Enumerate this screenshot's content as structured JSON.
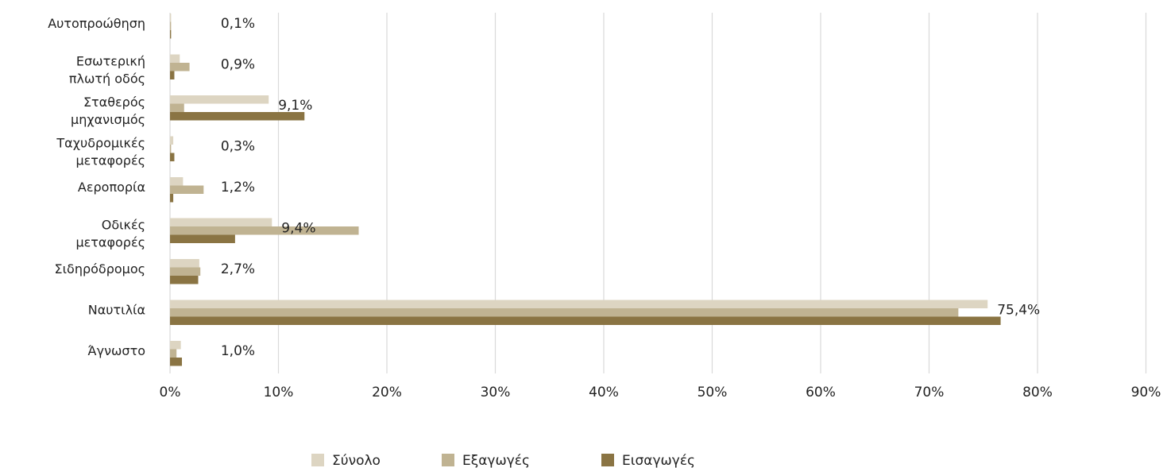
{
  "chart_data": {
    "type": "bar",
    "orientation": "horizontal",
    "categories": [
      "Αυτοπροώθηση",
      "Εσωτερική πλωτή οδός",
      "Σταθερός μηχανισμός",
      "Ταχυδρομικές μεταφορές",
      "Αεροπορία",
      "Οδικές μεταφορές",
      "Σιδηρόδρομος",
      "Ναυτιλία",
      "Άγνωστο"
    ],
    "category_lines": [
      [
        "Αυτοπροώθηση"
      ],
      [
        "Εσωτερική",
        "πλωτή οδός"
      ],
      [
        "Σταθερός",
        "μηχανισμός"
      ],
      [
        "Ταχυδρομικές",
        "μεταφορές"
      ],
      [
        "Αεροπορία"
      ],
      [
        "Οδικές",
        "μεταφορές"
      ],
      [
        "Σιδηρόδρομος"
      ],
      [
        "Ναυτιλία"
      ],
      [
        "Άγνωστο"
      ]
    ],
    "series": [
      {
        "name": "Σύνολο",
        "color": "#ddd5c2",
        "values": [
          0.1,
          0.9,
          9.1,
          0.3,
          1.2,
          9.4,
          2.7,
          75.4,
          1.0
        ]
      },
      {
        "name": "Εξαγωγές",
        "color": "#c0b392",
        "values": [
          0.1,
          1.8,
          1.3,
          0.1,
          3.1,
          17.4,
          2.8,
          72.7,
          0.6
        ]
      },
      {
        "name": "Εισαγωγές",
        "color": "#8a7443",
        "values": [
          0.1,
          0.4,
          12.4,
          0.4,
          0.3,
          6.0,
          2.6,
          76.6,
          1.1
        ]
      }
    ],
    "data_labels": [
      "0,1%",
      "0,9%",
      "9,1%",
      "0,3%",
      "1,2%",
      "9,4%",
      "2,7%",
      "75,4%",
      "1,0%"
    ],
    "x_ticks": [
      0,
      10,
      20,
      30,
      40,
      50,
      60,
      70,
      80,
      90
    ],
    "x_tick_labels": [
      "0%",
      "10%",
      "20%",
      "30%",
      "40%",
      "50%",
      "60%",
      "70%",
      "80%",
      "90%"
    ],
    "xlim": [
      0,
      90
    ],
    "grid": "vertical",
    "legend_position": "bottom-center",
    "title": "",
    "xlabel": "",
    "ylabel": ""
  }
}
